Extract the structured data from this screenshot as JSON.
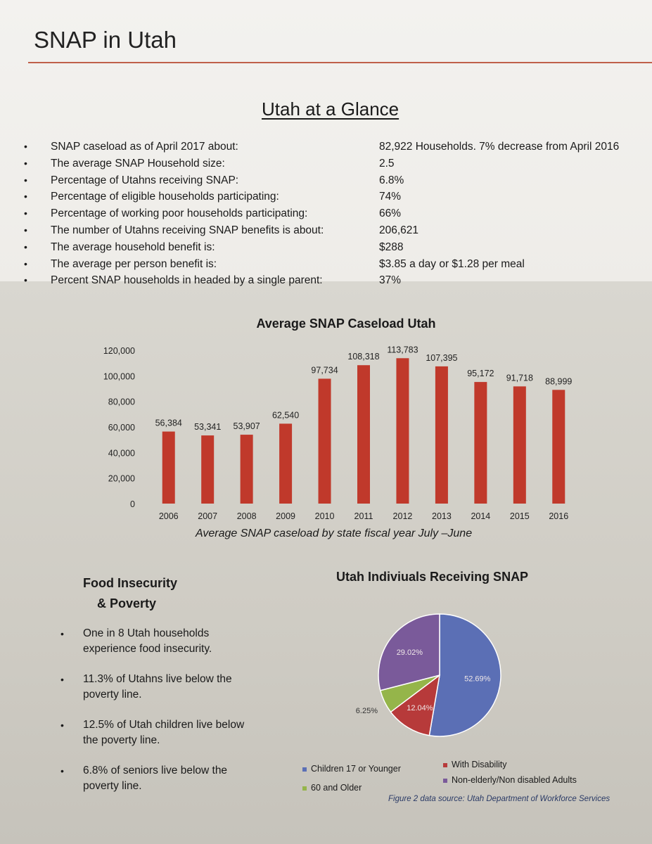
{
  "header": {
    "title": "SNAP in Utah"
  },
  "glance": {
    "heading": "Utah at a Glance",
    "stats": [
      {
        "label": "SNAP caseload as of April 2017 about:",
        "value": "82,922 Households. 7% decrease from April 2016"
      },
      {
        "label": "The average SNAP Household size:",
        "value": "2.5"
      },
      {
        "label": "Percentage of Utahns receiving SNAP:",
        "value": "6.8%"
      },
      {
        "label": "Percentage of eligible households participating:",
        "value": "74%"
      },
      {
        "label": "Percentage of working poor households participating:",
        "value": "66%"
      },
      {
        "label": "The number of Utahns receiving SNAP  benefits is about:",
        "value": "206,621"
      },
      {
        "label": "The average household benefit is:",
        "value": "$288"
      },
      {
        "label": "The average per person  benefit is:",
        "value": "$3.85 a day or $1.28 per meal"
      },
      {
        "label": "Percent SNAP households in headed by a single parent:",
        "value": "37%"
      }
    ]
  },
  "chart_data": [
    {
      "type": "bar",
      "title": "Average SNAP  Caseload Utah",
      "caption": "Average SNAP caseload by state fiscal year July –June",
      "categories": [
        "2006",
        "2007",
        "2008",
        "2009",
        "2010",
        "2011",
        "2012",
        "2013",
        "2014",
        "2015",
        "2016"
      ],
      "values": [
        56384,
        53341,
        53907,
        62540,
        97734,
        108318,
        113783,
        107395,
        95172,
        91718,
        88999
      ],
      "value_labels": [
        "56,384",
        "53,341",
        "53,907",
        "62,540",
        "97,734",
        "108,318",
        "113,783",
        "107,395",
        "95,172",
        "91,718",
        "88,999"
      ],
      "ylim": [
        0,
        120000
      ],
      "yticks": [
        "0",
        "20,000",
        "40,000",
        "60,000",
        "80,000",
        "100,000",
        "120,000"
      ],
      "bar_color": "#c0392b",
      "grid": false,
      "legend": "none"
    },
    {
      "type": "pie",
      "title": "Utah Indiviuals Receiving SNAP",
      "slices": [
        {
          "name": "Children 17 or Younger",
          "value": 52.69,
          "label": "52.69%",
          "color": "#5b6fb5"
        },
        {
          "name": "With Disability",
          "value": 12.04,
          "label": "12.04%",
          "color": "#b73a3a"
        },
        {
          "name": "60 and Older",
          "value": 6.25,
          "label": "6.25%",
          "color": "#95b54a"
        },
        {
          "name": "Non-elderly/Non disabled Adults",
          "value": 29.02,
          "label": "29.02%",
          "color": "#7a5a9a"
        }
      ],
      "legend": "bottom",
      "source_caption": "Figure 2  data source: Utah Department of Workforce Services"
    }
  ],
  "food_insecurity": {
    "title_line1": "Food Insecurity",
    "title_line2": "& Poverty",
    "items": [
      "One in 8 Utah households experience food insecurity.",
      "11.3% of Utahns live below the poverty line.",
      "12.5% of Utah children live below the poverty line.",
      "6.8% of seniors live below the poverty line."
    ]
  },
  "bullet_glyph": "•"
}
